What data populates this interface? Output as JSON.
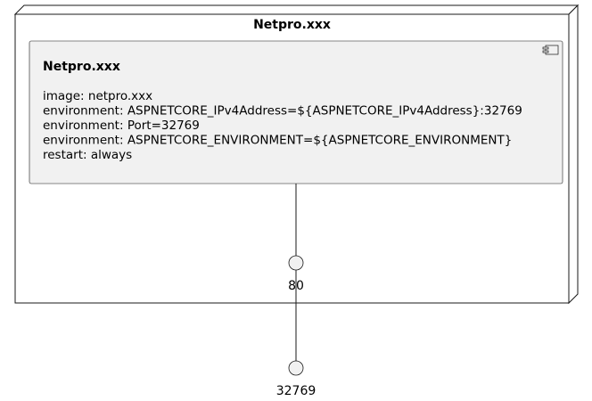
{
  "node": {
    "title": "Netpro.xxx"
  },
  "component": {
    "title": "Netpro.xxx",
    "lines": [
      "image: netpro.xxx",
      "environment: ASPNETCORE_IPv4Address=${ASPNETCORE_IPv4Address}:32769",
      "environment: Port=32769",
      "environment: ASPNETCORE_ENVIRONMENT=${ASPNETCORE_ENVIRONMENT}",
      "restart: always"
    ]
  },
  "ports": {
    "internal": "80",
    "external": "32769"
  },
  "colors": {
    "component_fill": "#f1f1f1",
    "port_fill": "#f1f1f1",
    "stroke": "#181818"
  }
}
